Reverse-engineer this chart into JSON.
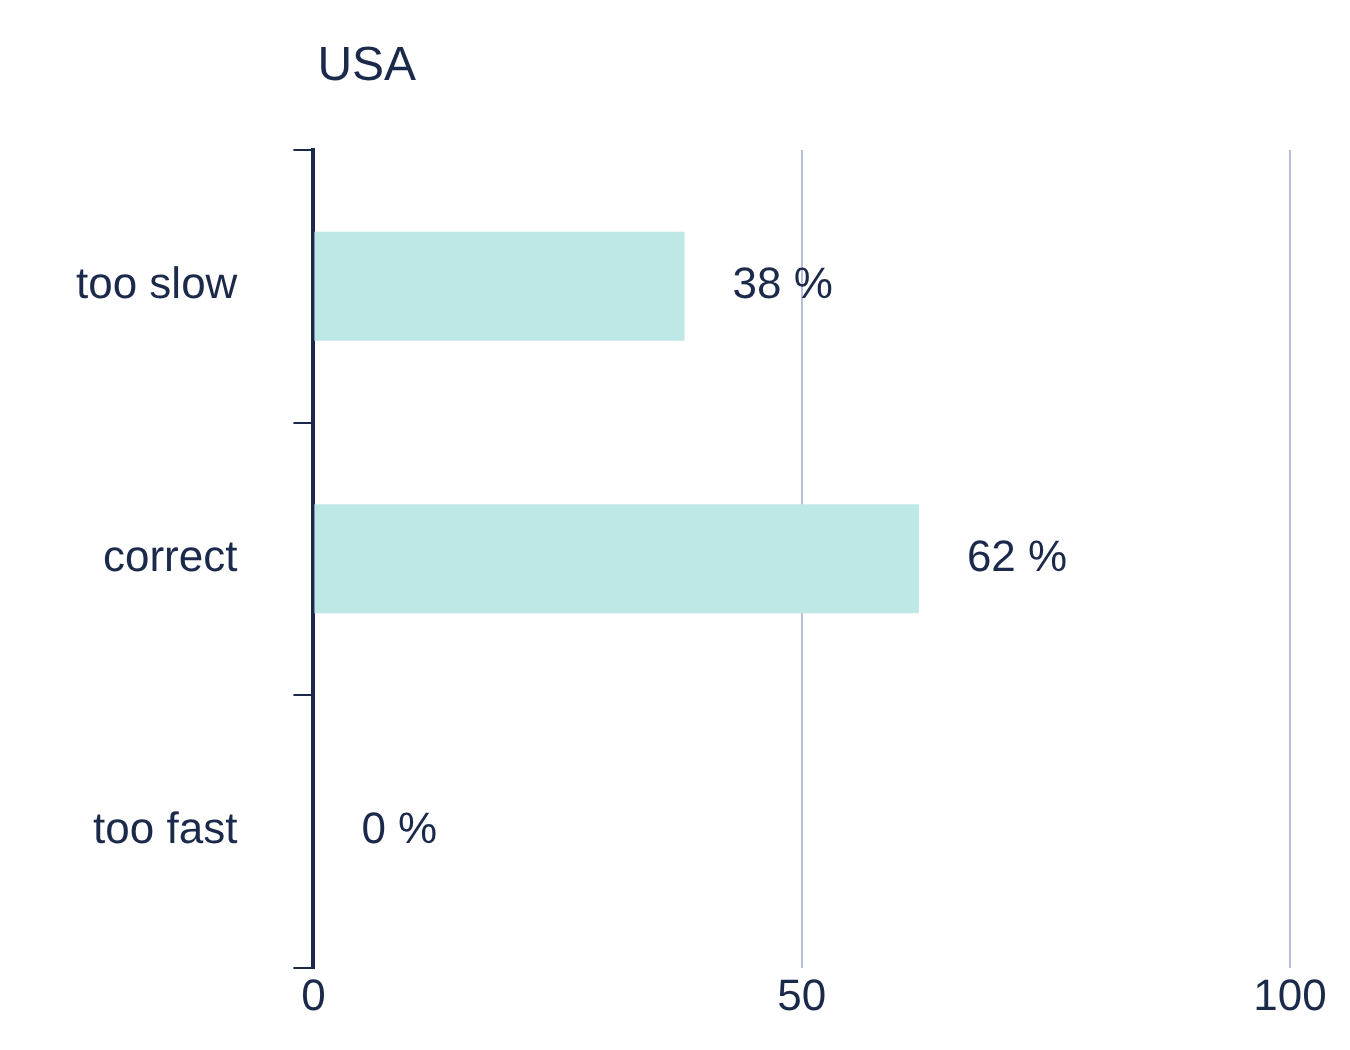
{
  "chart_data": {
    "type": "bar",
    "orientation": "horizontal",
    "title": "USA",
    "categories": [
      "too slow",
      "correct",
      "too fast"
    ],
    "values": [
      38,
      62,
      0
    ],
    "value_labels": [
      "38 %",
      "62 %",
      "0 %"
    ],
    "color": "#bde8e6",
    "xlim": [
      0,
      100
    ],
    "xticks": [
      0,
      50,
      100
    ],
    "grid": "x"
  }
}
